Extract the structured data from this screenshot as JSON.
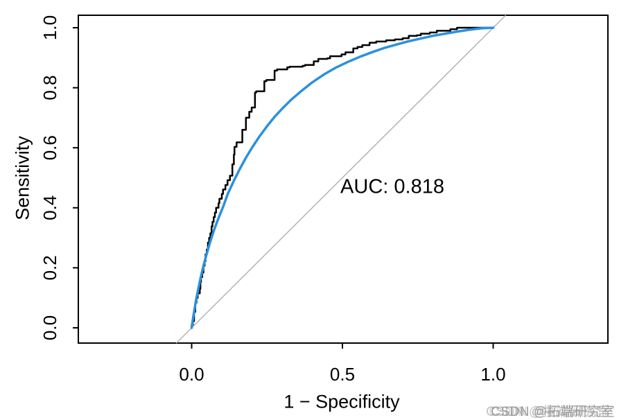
{
  "figure": {
    "background": "#ffffff",
    "frame_color": "#000000"
  },
  "chart_data": {
    "type": "line",
    "title": "",
    "xlabel": "1 − Specificity",
    "ylabel": "Sensitivity",
    "xlim": [
      0,
      1
    ],
    "ylim": [
      0,
      1
    ],
    "grid": "off",
    "legend": "none",
    "x_ticks": {
      "values": [
        0.0,
        0.5,
        1.0
      ],
      "labels": [
        "0.0",
        "0.5",
        "1.0"
      ]
    },
    "y_ticks": {
      "values": [
        0.0,
        0.2,
        0.4,
        0.6,
        0.8,
        1.0
      ],
      "labels": [
        "0.0",
        "0.2",
        "0.4",
        "0.6",
        "0.8",
        "1.0"
      ]
    },
    "annotation": {
      "text": "AUC: 0.818",
      "x": 0.665,
      "y": 0.47
    },
    "reference_line": {
      "type": "diagonal-chance-line",
      "from": [
        0,
        0
      ],
      "to": [
        1,
        1
      ],
      "color": "#b3b3b3"
    },
    "series": [
      {
        "name": "empirical-roc",
        "label": "Empirical ROC (step curve)",
        "type": "step",
        "color": "#000000",
        "width": 2.5,
        "points": [
          [
            0.0,
            0.0
          ],
          [
            0.004,
            0.01
          ],
          [
            0.008,
            0.022
          ],
          [
            0.012,
            0.053
          ],
          [
            0.016,
            0.084
          ],
          [
            0.02,
            0.1
          ],
          [
            0.027,
            0.115
          ],
          [
            0.029,
            0.13
          ],
          [
            0.031,
            0.153
          ],
          [
            0.035,
            0.169
          ],
          [
            0.039,
            0.184
          ],
          [
            0.043,
            0.207
          ],
          [
            0.046,
            0.222
          ],
          [
            0.05,
            0.245
          ],
          [
            0.054,
            0.261
          ],
          [
            0.058,
            0.284
          ],
          [
            0.062,
            0.3
          ],
          [
            0.066,
            0.315
          ],
          [
            0.069,
            0.338
          ],
          [
            0.073,
            0.353
          ],
          [
            0.077,
            0.369
          ],
          [
            0.081,
            0.384
          ],
          [
            0.089,
            0.4
          ],
          [
            0.092,
            0.415
          ],
          [
            0.1,
            0.43
          ],
          [
            0.104,
            0.446
          ],
          [
            0.112,
            0.461
          ],
          [
            0.119,
            0.476
          ],
          [
            0.127,
            0.492
          ],
          [
            0.135,
            0.507
          ],
          [
            0.14,
            0.545
          ],
          [
            0.142,
            0.577
          ],
          [
            0.149,
            0.603
          ],
          [
            0.168,
            0.618
          ],
          [
            0.18,
            0.66
          ],
          [
            0.191,
            0.7
          ],
          [
            0.199,
            0.72
          ],
          [
            0.21,
            0.734
          ],
          [
            0.214,
            0.784
          ],
          [
            0.241,
            0.788
          ],
          [
            0.248,
            0.822
          ],
          [
            0.275,
            0.826
          ],
          [
            0.283,
            0.857
          ],
          [
            0.317,
            0.861
          ],
          [
            0.325,
            0.868
          ],
          [
            0.368,
            0.87
          ],
          [
            0.376,
            0.873
          ],
          [
            0.405,
            0.876
          ],
          [
            0.42,
            0.888
          ],
          [
            0.45,
            0.896
          ],
          [
            0.459,
            0.898
          ],
          [
            0.497,
            0.905
          ],
          [
            0.51,
            0.911
          ],
          [
            0.536,
            0.918
          ],
          [
            0.55,
            0.931
          ],
          [
            0.566,
            0.936
          ],
          [
            0.59,
            0.942
          ],
          [
            0.612,
            0.95
          ],
          [
            0.645,
            0.954
          ],
          [
            0.674,
            0.958
          ],
          [
            0.7,
            0.961
          ],
          [
            0.72,
            0.965
          ],
          [
            0.747,
            0.973
          ],
          [
            0.76,
            0.975
          ],
          [
            0.79,
            0.98
          ],
          [
            0.813,
            0.984
          ],
          [
            0.858,
            0.99
          ],
          [
            0.88,
            0.995
          ],
          [
            0.905,
            1.0
          ],
          [
            1.0,
            1.0
          ]
        ]
      },
      {
        "name": "smooth-roc",
        "label": "Smoothed ROC curve",
        "type": "smooth",
        "color": "#2b90dd",
        "width": 3.5,
        "points": [
          [
            0.0,
            0.0
          ],
          [
            0.005,
            0.035
          ],
          [
            0.01,
            0.065
          ],
          [
            0.015,
            0.095
          ],
          [
            0.022,
            0.13
          ],
          [
            0.03,
            0.168
          ],
          [
            0.04,
            0.21
          ],
          [
            0.05,
            0.247
          ],
          [
            0.062,
            0.288
          ],
          [
            0.075,
            0.328
          ],
          [
            0.09,
            0.368
          ],
          [
            0.105,
            0.405
          ],
          [
            0.12,
            0.447
          ],
          [
            0.14,
            0.49
          ],
          [
            0.16,
            0.53
          ],
          [
            0.18,
            0.567
          ],
          [
            0.2,
            0.6
          ],
          [
            0.225,
            0.638
          ],
          [
            0.25,
            0.672
          ],
          [
            0.275,
            0.703
          ],
          [
            0.3,
            0.73
          ],
          [
            0.33,
            0.76
          ],
          [
            0.36,
            0.786
          ],
          [
            0.4,
            0.818
          ],
          [
            0.44,
            0.845
          ],
          [
            0.48,
            0.868
          ],
          [
            0.52,
            0.887
          ],
          [
            0.56,
            0.904
          ],
          [
            0.6,
            0.919
          ],
          [
            0.64,
            0.933
          ],
          [
            0.68,
            0.944
          ],
          [
            0.72,
            0.955
          ],
          [
            0.76,
            0.964
          ],
          [
            0.8,
            0.973
          ],
          [
            0.84,
            0.98
          ],
          [
            0.88,
            0.987
          ],
          [
            0.92,
            0.993
          ],
          [
            0.96,
            0.998
          ],
          [
            1.0,
            1.0
          ]
        ]
      }
    ]
  },
  "watermark": {
    "text": "CSDN @拓端研究室",
    "color": "#9b9b9b"
  }
}
